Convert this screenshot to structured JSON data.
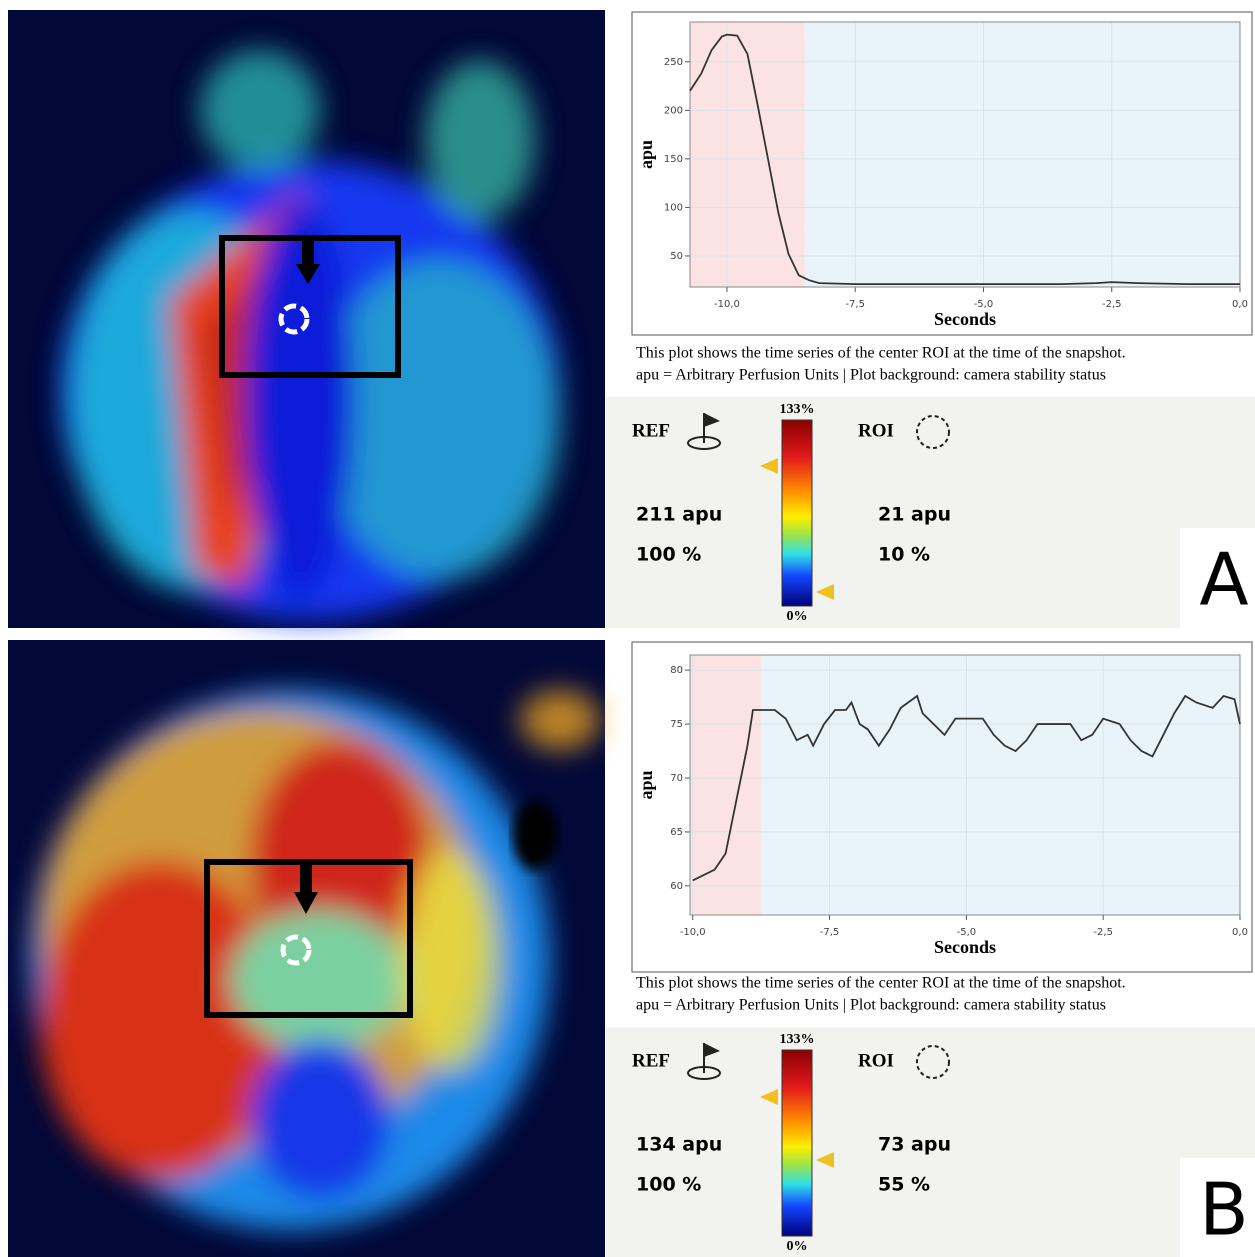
{
  "chart_data": [
    {
      "type": "line",
      "x_label": "Seconds",
      "y_label": "apu",
      "xlim": [
        -10.72,
        0
      ],
      "ylim": [
        18,
        291
      ],
      "xticks": [
        {
          "value": -10,
          "label": "-10,0"
        },
        {
          "value": -7.5,
          "label": "-7,5"
        },
        {
          "value": -5,
          "label": "-5,0"
        },
        {
          "value": -2.5,
          "label": "-2,5"
        },
        {
          "value": 0,
          "label": "0,0"
        }
      ],
      "yticks": [
        50,
        100,
        150,
        200,
        250
      ],
      "bands": [
        {
          "from": -10.72,
          "to": -8.48,
          "color": "#fbe3e3"
        },
        {
          "from": -8.48,
          "to": 0,
          "color": "#e9f4fa"
        }
      ],
      "color": "#333333",
      "x": [
        -10.72,
        -10.5,
        -10.3,
        -10.1,
        -10.0,
        -9.8,
        -9.6,
        -9.4,
        -9.2,
        -9.0,
        -8.8,
        -8.6,
        -8.4,
        -8.2,
        -7.5,
        -6.0,
        -5.0,
        -3.5,
        -2.8,
        -2.5,
        -2.0,
        -1.0,
        0
      ],
      "values": [
        220,
        238,
        262,
        276,
        278,
        277,
        258,
        205,
        150,
        95,
        52,
        30,
        25,
        22,
        21,
        21,
        21,
        21,
        22,
        23,
        22,
        21,
        21
      ]
    },
    {
      "type": "line",
      "x_label": "Seconds",
      "y_label": "apu",
      "xlim": [
        -10.05,
        0
      ],
      "ylim": [
        57.3,
        81.4
      ],
      "xticks": [
        {
          "value": -10,
          "label": "-10,0"
        },
        {
          "value": -7.5,
          "label": "-7,5"
        },
        {
          "value": -5,
          "label": "-5,0"
        },
        {
          "value": -2.5,
          "label": "-2,5"
        },
        {
          "value": 0,
          "label": "0,0"
        }
      ],
      "yticks": [
        60,
        65,
        70,
        75,
        80
      ],
      "bands": [
        {
          "from": -10.05,
          "to": -8.74,
          "color": "#fbe3e3"
        },
        {
          "from": -8.74,
          "to": 0,
          "color": "#e9f4fa"
        }
      ],
      "color": "#333333",
      "x": [
        -10.0,
        -9.8,
        -9.6,
        -9.4,
        -9.2,
        -9.0,
        -8.9,
        -8.5,
        -8.3,
        -8.1,
        -7.9,
        -7.8,
        -7.6,
        -7.4,
        -7.2,
        -7.1,
        -6.95,
        -6.8,
        -6.6,
        -6.4,
        -6.2,
        -5.9,
        -5.8,
        -5.6,
        -5.4,
        -5.2,
        -4.7,
        -4.5,
        -4.3,
        -4.1,
        -3.9,
        -3.7,
        -3.1,
        -2.9,
        -2.7,
        -2.5,
        -2.2,
        -2.0,
        -1.8,
        -1.6,
        -1.4,
        -1.2,
        -1.0,
        -0.8,
        -0.5,
        -0.3,
        -0.1,
        0
      ],
      "values": [
        60.5,
        61,
        61.5,
        63,
        68,
        73,
        76.3,
        76.3,
        75.5,
        73.5,
        74,
        73,
        75,
        76.3,
        76.3,
        77,
        75,
        74.5,
        73,
        74.5,
        76.5,
        77.6,
        76,
        75,
        74,
        75.5,
        75.5,
        74,
        73,
        72.5,
        73.5,
        75,
        75,
        73.5,
        74,
        75.5,
        75,
        73.5,
        72.5,
        72,
        74,
        76,
        77.6,
        77,
        76.5,
        77.6,
        77.3,
        75
      ]
    }
  ],
  "panels": [
    {
      "letter": "A",
      "caption": [
        "This plot shows the time series of the center ROI at the time of the snapshot.",
        "apu = Arbitrary Perfusion Units | Plot background: camera stability status"
      ],
      "ref_label": "REF",
      "ref_apu": "211 apu",
      "ref_pct": "100 %",
      "roi_label": "ROI",
      "roi_apu": "21 apu",
      "roi_pct": "10 %",
      "scale_max": "133%",
      "scale_min": "0%"
    },
    {
      "letter": "B",
      "caption": [
        "This plot shows the time series of the center ROI at the time of the snapshot.",
        "apu = Arbitrary Perfusion Units | Plot background: camera stability status"
      ],
      "ref_label": "REF",
      "ref_apu": "134 apu",
      "ref_pct": "100 %",
      "roi_label": "ROI",
      "roi_apu": "73 apu",
      "roi_pct": "55 %",
      "scale_max": "133%",
      "scale_min": "0%"
    }
  ]
}
